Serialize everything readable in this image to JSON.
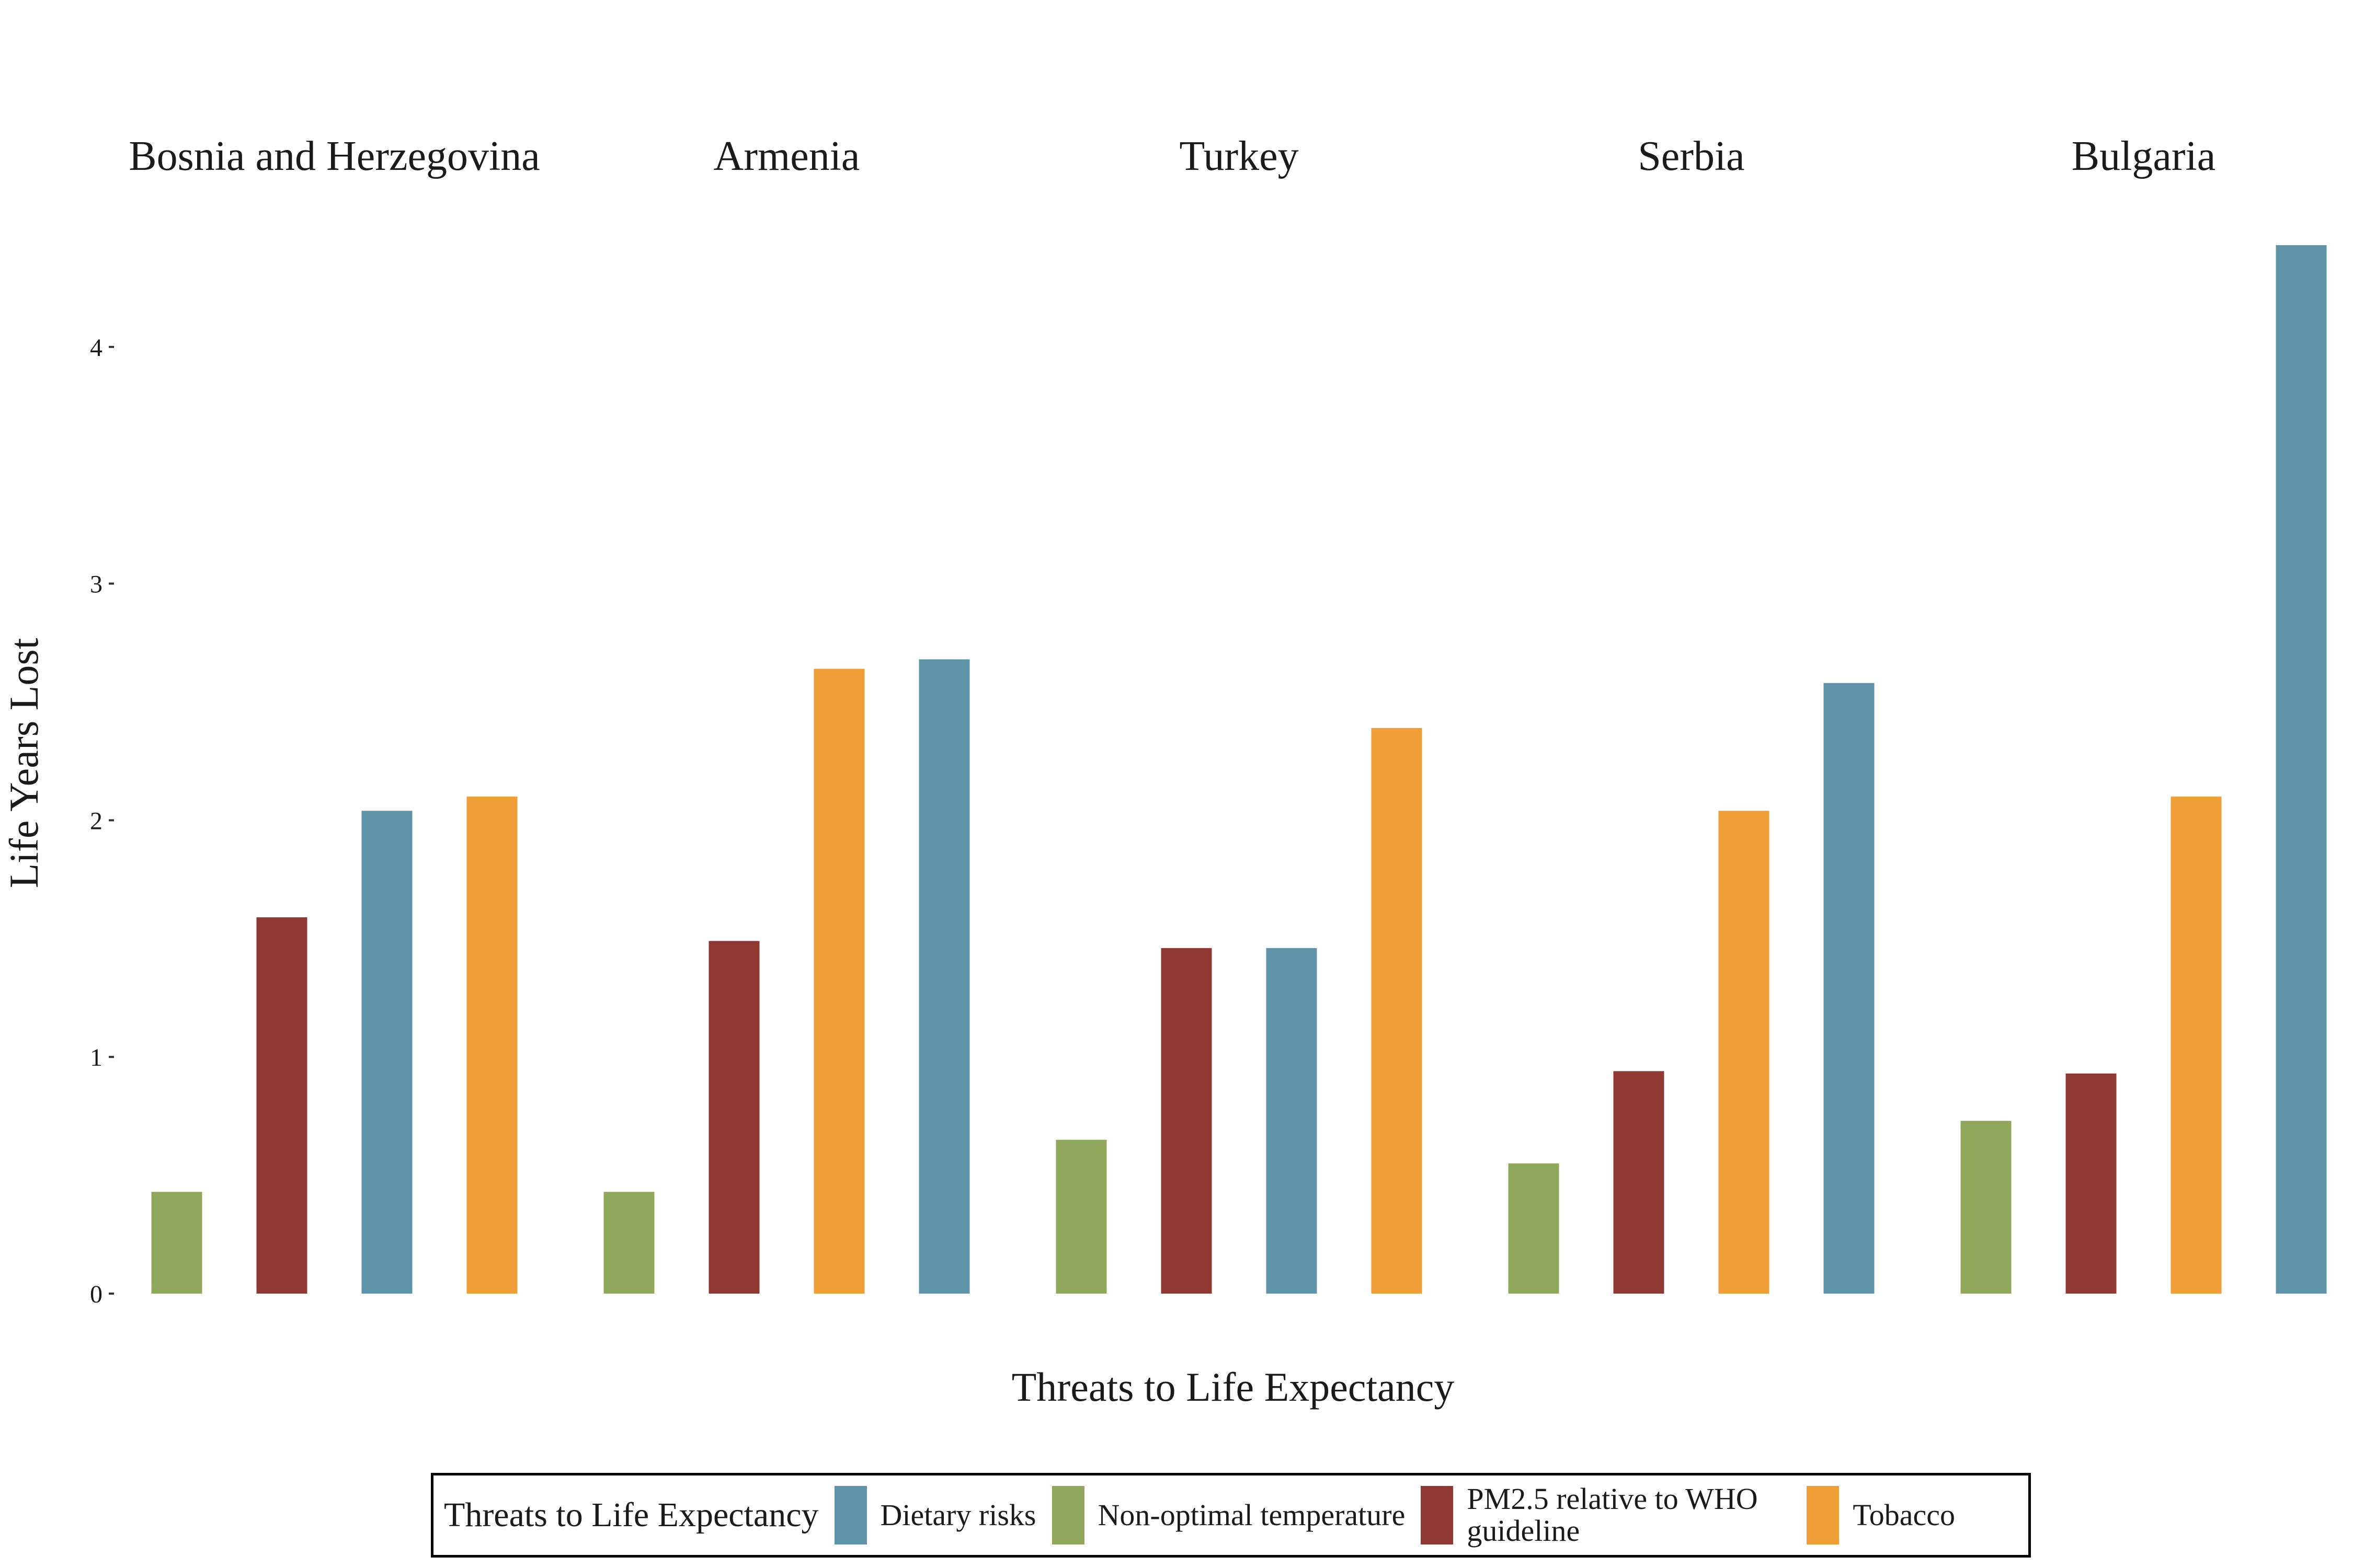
{
  "chart_data": {
    "type": "bar",
    "facets": [
      "Bosnia and Herzegovina",
      "Armenia",
      "Turkey",
      "Serbia",
      "Bulgaria"
    ],
    "ylabel": "Life Years Lost",
    "xlabel": "Threats to Life Expectancy",
    "ylim": [
      0,
      4.45
    ],
    "yticks": [
      "0",
      "1",
      "2",
      "3",
      "4"
    ],
    "grid": false,
    "legend": {
      "position": "bottom",
      "title": "Threats to Life Expectancy",
      "items": [
        {
          "label": "Dietary risks",
          "color": "#5e93aa"
        },
        {
          "label": "Non-optimal temperature",
          "color": "#8fa85b"
        },
        {
          "label": "PM2.5 relative to WHO guideline",
          "color": "#903933"
        },
        {
          "label": "Tobacco",
          "color": "#f09e37"
        }
      ]
    },
    "bars": [
      [
        {
          "threat": "Non-optimal temperature",
          "value": 0.43
        },
        {
          "threat": "PM2.5 relative to WHO guideline",
          "value": 1.59
        },
        {
          "threat": "Dietary risks",
          "value": 2.04
        },
        {
          "threat": "Tobacco",
          "value": 2.1
        }
      ],
      [
        {
          "threat": "Non-optimal temperature",
          "value": 0.43
        },
        {
          "threat": "PM2.5 relative to WHO guideline",
          "value": 1.49
        },
        {
          "threat": "Tobacco",
          "value": 2.64
        },
        {
          "threat": "Dietary risks",
          "value": 2.68
        }
      ],
      [
        {
          "threat": "Non-optimal temperature",
          "value": 0.65
        },
        {
          "threat": "PM2.5 relative to WHO guideline",
          "value": 1.46
        },
        {
          "threat": "Dietary risks",
          "value": 1.46
        },
        {
          "threat": "Tobacco",
          "value": 2.39
        }
      ],
      [
        {
          "threat": "Non-optimal temperature",
          "value": 0.55
        },
        {
          "threat": "PM2.5 relative to WHO guideline",
          "value": 0.94
        },
        {
          "threat": "Tobacco",
          "value": 2.04
        },
        {
          "threat": "Dietary risks",
          "value": 2.58
        }
      ],
      [
        {
          "threat": "Non-optimal temperature",
          "value": 0.73
        },
        {
          "threat": "PM2.5 relative to WHO guideline",
          "value": 0.93
        },
        {
          "threat": "Tobacco",
          "value": 2.1
        },
        {
          "threat": "Dietary risks",
          "value": 4.43
        }
      ]
    ]
  }
}
